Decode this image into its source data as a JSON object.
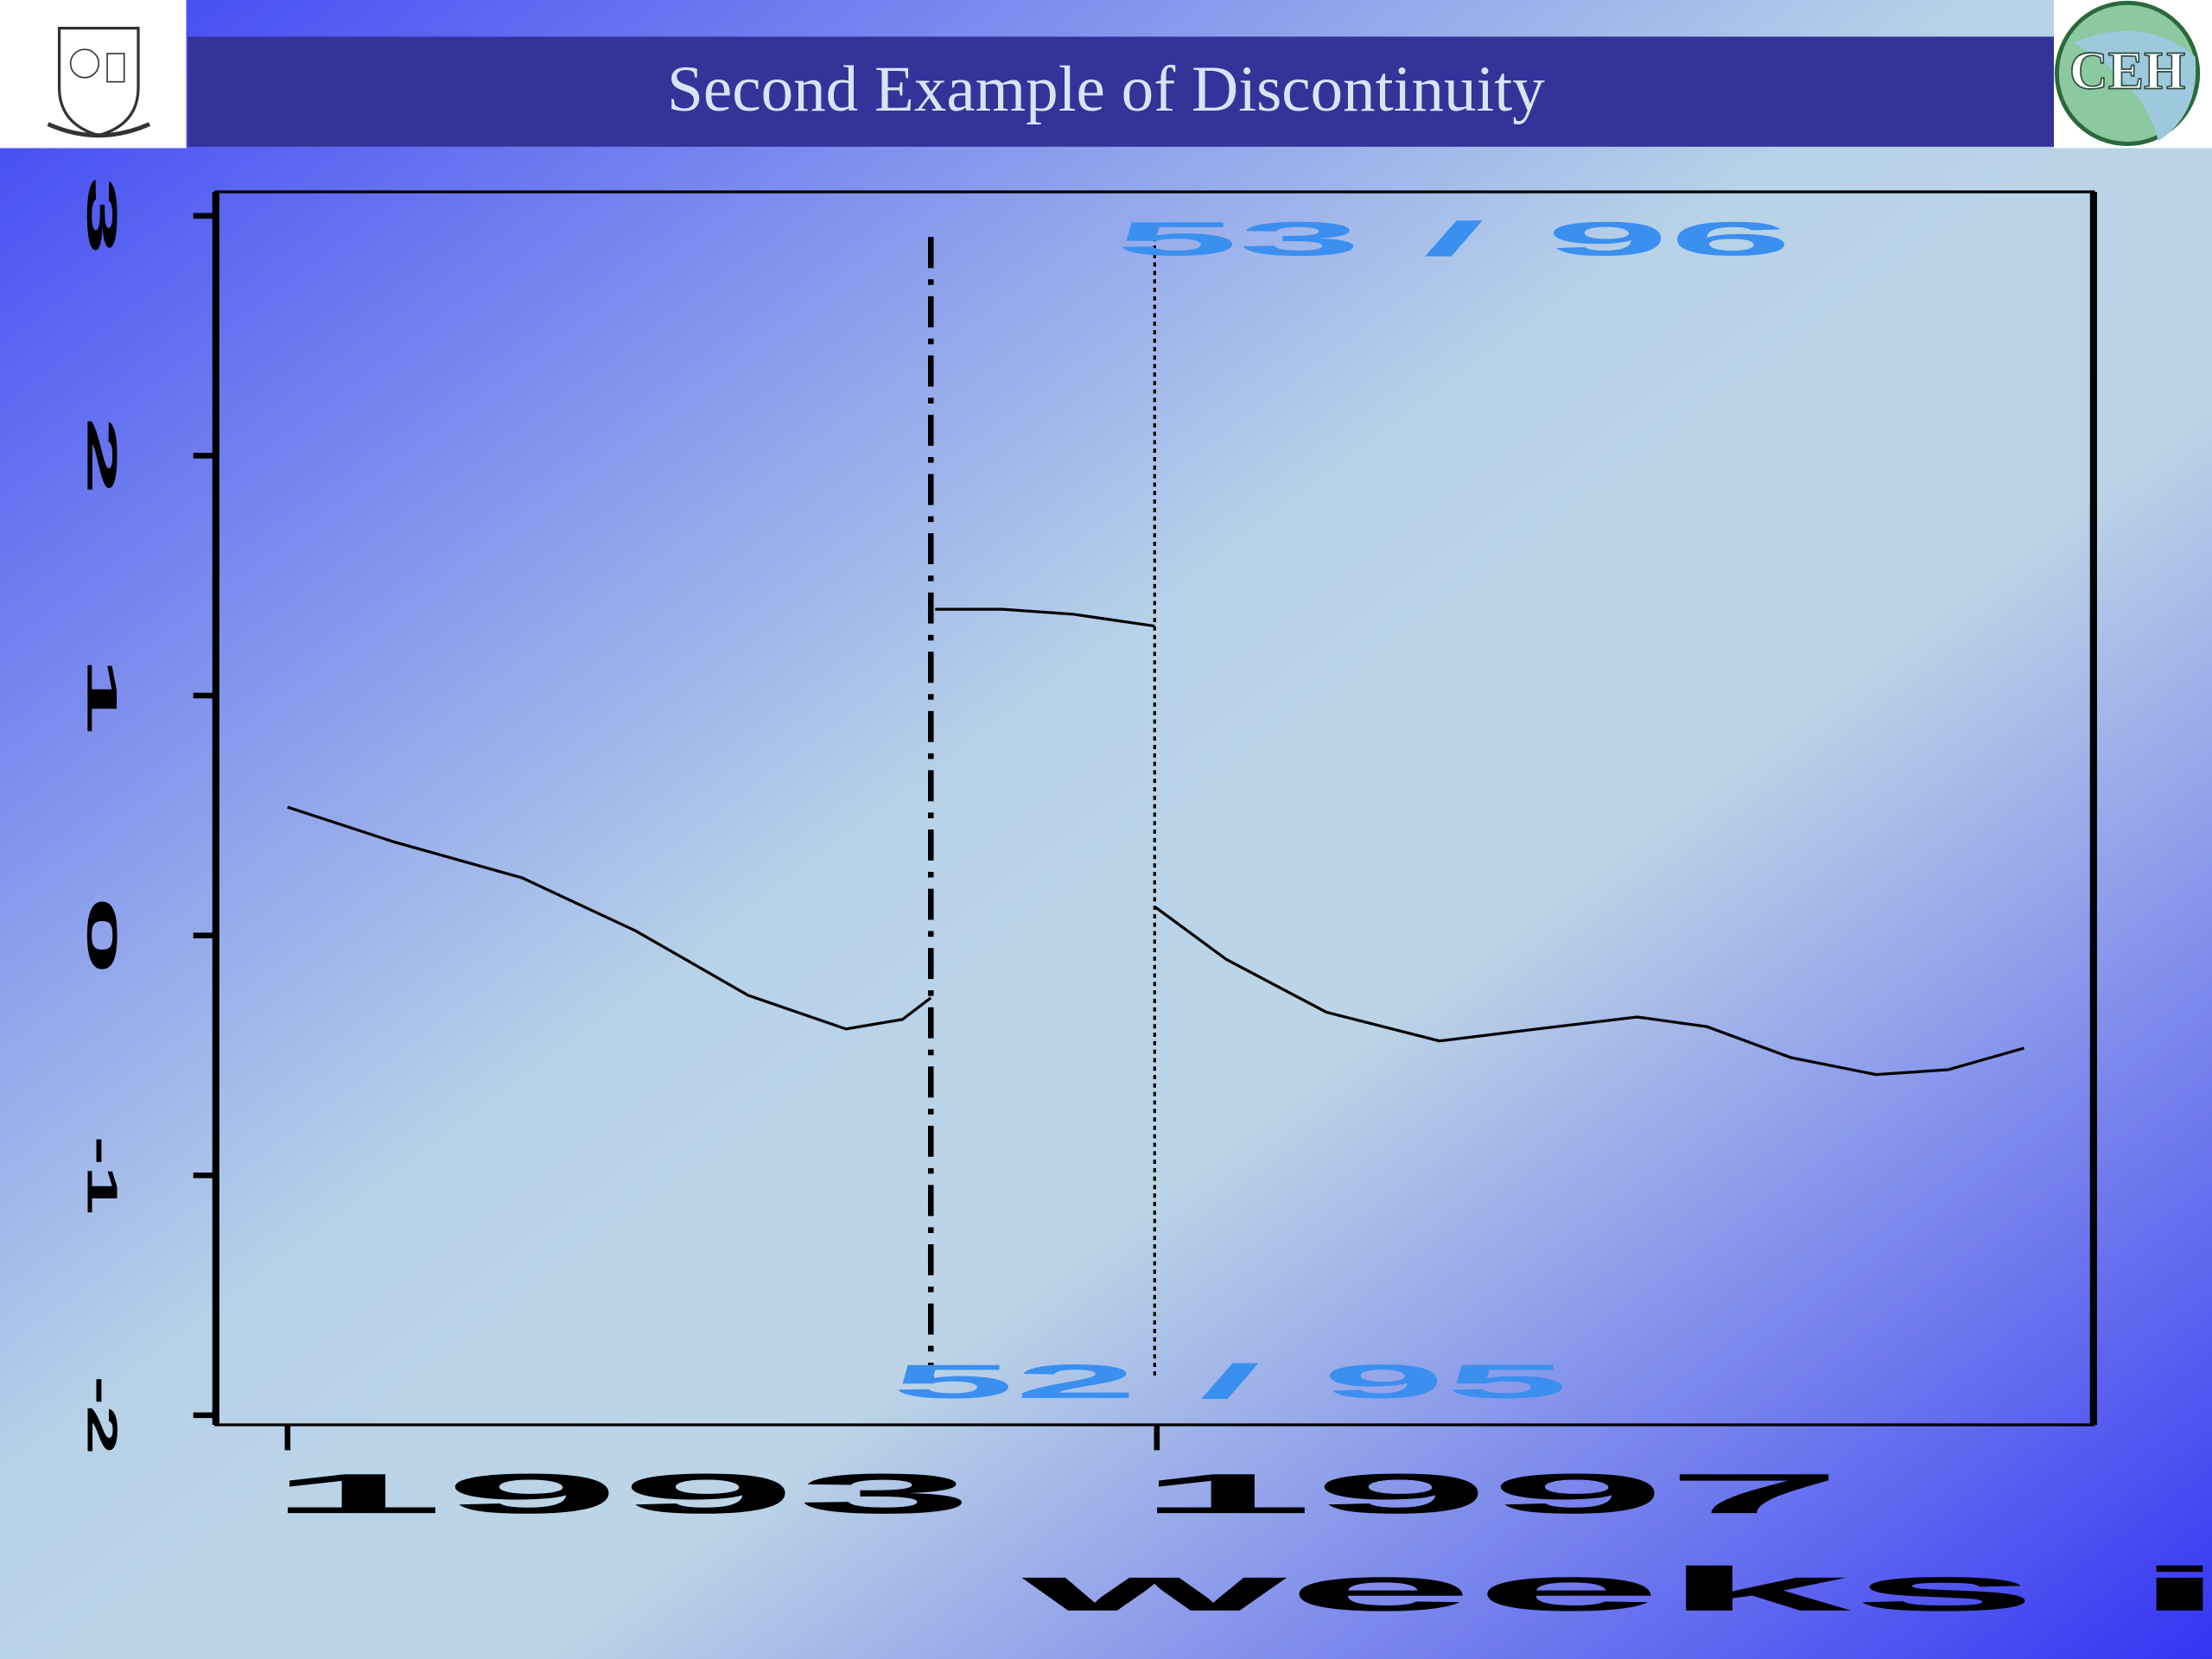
{
  "title": "Second Example of Discontinuity",
  "logo": "CEH",
  "chart_data": {
    "type": "line",
    "color": "#000000",
    "x": [
      1993,
      1993.49,
      1994.08,
      1994.6,
      1995.12,
      1995.57,
      1995.83,
      1995.96,
      null,
      1995.98,
      1996.29,
      1996.61,
      1996.99,
      null,
      1996.99,
      1997.32,
      1997.78,
      1998.3,
      1998.75,
      1999.21,
      1999.53,
      1999.92,
      2000.31,
      2000.64,
      2000.99
    ],
    "values": [
      0.535,
      0.39,
      0.24,
      0.02,
      -0.25,
      -0.39,
      -0.35,
      -0.26,
      null,
      1.36,
      1.36,
      1.34,
      1.29,
      null,
      0.12,
      -0.1,
      -0.32,
      -0.44,
      -0.39,
      -0.34,
      -0.38,
      -0.51,
      -0.58,
      -0.56,
      -0.47
    ],
    "xlim": [
      1992.67,
      2001.31
    ],
    "xticks": [
      1993,
      1997
    ],
    "ylim": [
      -2.04,
      3.1
    ],
    "yticks": [
      -2,
      -1,
      0,
      1,
      2,
      3
    ],
    "x_label": "weeks in",
    "vlines": [
      {
        "x": 1995.96,
        "style": "dashdot",
        "label": "52 / 95",
        "label_pos": "bottom"
      },
      {
        "x": 1996.99,
        "style": "dotted",
        "label": "53 / 96",
        "label_pos": "top"
      }
    ],
    "annotation_color": "#3a8fef"
  }
}
